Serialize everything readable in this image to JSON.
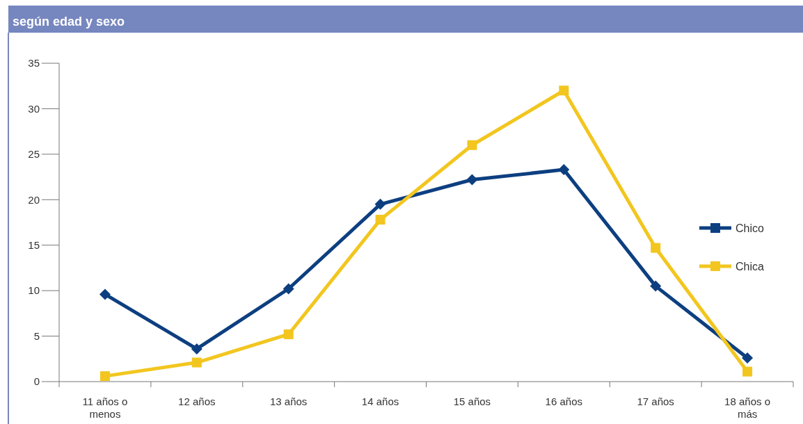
{
  "chart_data": {
    "type": "line",
    "title": "según edad y sexo",
    "categories": [
      "11 años o menos",
      "12 años",
      "13 años",
      "14 años",
      "15 años",
      "16 años",
      "17 años",
      "18 años o más"
    ],
    "series": [
      {
        "name": "Chico",
        "color": "#0d3f80",
        "marker": "diamond",
        "values": [
          9.6,
          3.6,
          10.2,
          19.5,
          22.2,
          23.3,
          10.5,
          2.6
        ]
      },
      {
        "name": "Chica",
        "color": "#f2c61f",
        "marker": "square",
        "values": [
          0.6,
          2.1,
          5.2,
          17.8,
          26.0,
          32.0,
          14.7,
          1.1
        ]
      }
    ],
    "ylim": [
      0,
      35
    ],
    "yticks": [
      0,
      5,
      10,
      15,
      20,
      25,
      30,
      35
    ],
    "grid": false,
    "legend": "right"
  }
}
